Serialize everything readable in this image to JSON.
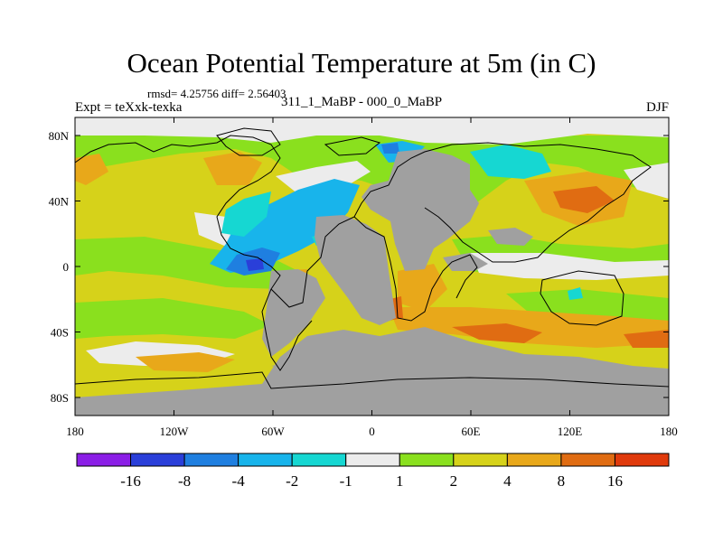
{
  "header": {
    "title": "Ocean Potential Temperature at 5m (in C)",
    "stats": "rmsd= 4.25756 diff= 2.56403",
    "expt": "Expt = teXxk-texka",
    "run": "311_1_MaBP - 000_0_MaBP",
    "season": "DJF"
  },
  "axes": {
    "x_ticks": [
      "180",
      "120W",
      "60W",
      "0",
      "60E",
      "120E",
      "180"
    ],
    "y_ticks": [
      "80N",
      "40N",
      "0",
      "40S",
      "80S"
    ]
  },
  "colorbar": {
    "colors": [
      "#8b1ee6",
      "#2a3fd9",
      "#1f7fe0",
      "#18b4eb",
      "#16d7d2",
      "#ececec",
      "#8ae01e",
      "#d6d21a",
      "#e8a81a",
      "#e06c12",
      "#e03a0c"
    ],
    "labels": [
      "-16",
      "-8",
      "-4",
      "-2",
      "-1",
      "1",
      "2",
      "4",
      "8",
      "16"
    ]
  },
  "map": {
    "land_color": "#a0a0a0",
    "ocean_default_color": "#d6d21a",
    "coastline_color": "#000000"
  }
}
